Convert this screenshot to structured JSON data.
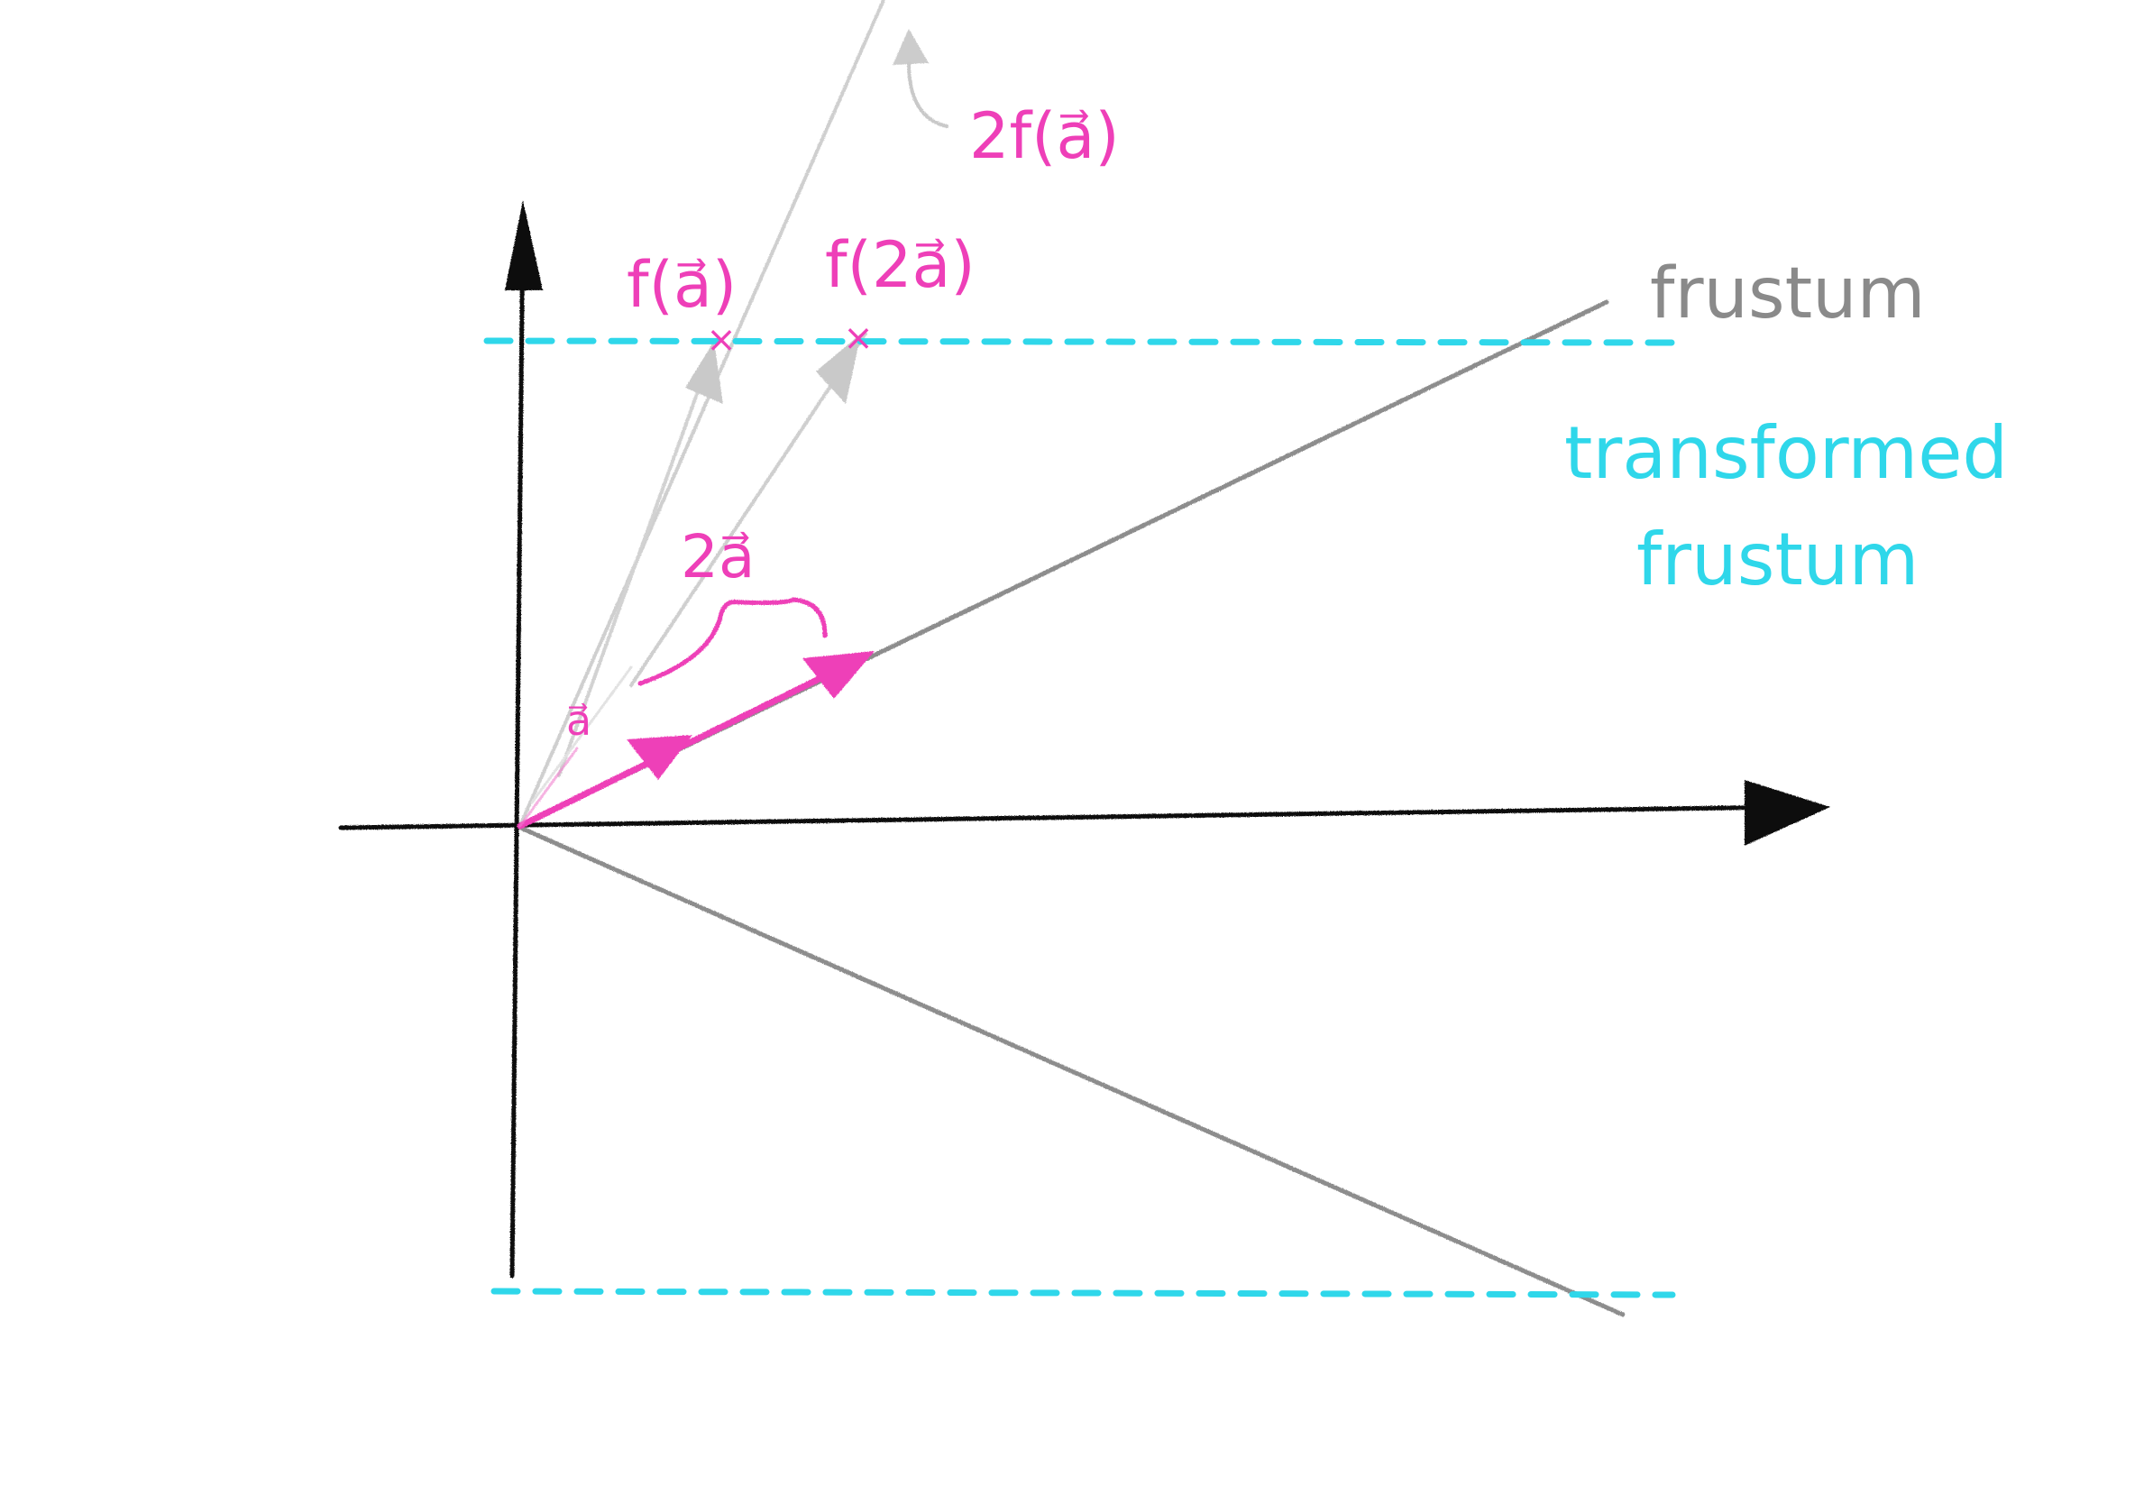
{
  "colors": {
    "axis": "#111111",
    "frustum": "#8a8a8a",
    "ray_light": "#c8c8c8",
    "vector": "#ee3fb8",
    "transformed": "#2fd7ea",
    "label_gray": "#8a8a8a",
    "background": "#ffffff"
  },
  "labels": {
    "two_f_a": "2f(a⃗)",
    "f_a": "f(a⃗)",
    "f_2a": "f(2a⃗)",
    "two_a": "2a⃗",
    "a": "a⃗",
    "frustum": "frustum",
    "transformed_line1": "transformed",
    "transformed_line2": "frustum",
    "cross_mark": "×"
  }
}
